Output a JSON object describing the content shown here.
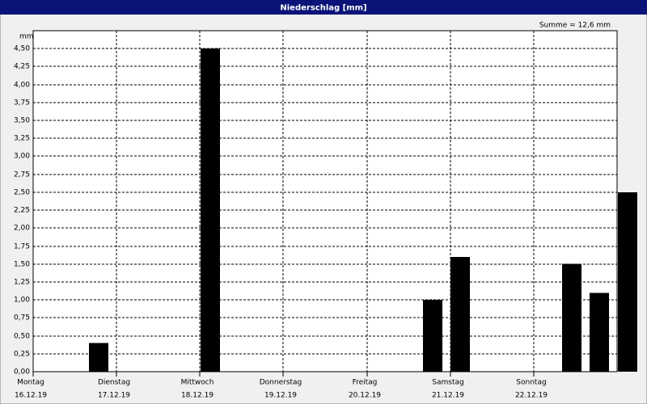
{
  "chart_data": {
    "type": "bar",
    "title": "Niederschlag [mm]",
    "summary": "Summe = 12,6 mm",
    "y_unit": "mm",
    "days": [
      {
        "name": "Montag",
        "date": "16.12.19"
      },
      {
        "name": "Dienstag",
        "date": "17.12.19"
      },
      {
        "name": "Mittwoch",
        "date": "18.12.19"
      },
      {
        "name": "Donnerstag",
        "date": "19.12.19"
      },
      {
        "name": "Freitag",
        "date": "20.12.19"
      },
      {
        "name": "Samstag",
        "date": "21.12.19"
      },
      {
        "name": "Sonntag",
        "date": "22.12.19"
      }
    ],
    "values": [
      0,
      0.4,
      0,
      0,
      0,
      4.5,
      0,
      0,
      0,
      0,
      0,
      0,
      0,
      1.0,
      1.6,
      0,
      0,
      0,
      1.5,
      1.1,
      2.5
    ],
    "color": "#000000",
    "ylim": [
      0,
      4.75
    ],
    "yticks": [
      {
        "value": 0,
        "label": "0,00"
      },
      {
        "value": 0.25,
        "label": "0,25"
      },
      {
        "value": 0.5,
        "label": "0,50"
      },
      {
        "value": 0.75,
        "label": "0,75"
      },
      {
        "value": 1,
        "label": "1,00"
      },
      {
        "value": 1.25,
        "label": "1,25"
      },
      {
        "value": 1.5,
        "label": "1,50"
      },
      {
        "value": 1.75,
        "label": "1,75"
      },
      {
        "value": 2,
        "label": "2,00"
      },
      {
        "value": 2.25,
        "label": "2,25"
      },
      {
        "value": 2.5,
        "label": "2,50"
      },
      {
        "value": 2.75,
        "label": "2,75"
      },
      {
        "value": 3,
        "label": "3,00"
      },
      {
        "value": 3.25,
        "label": "3,25"
      },
      {
        "value": 3.5,
        "label": "3,50"
      },
      {
        "value": 3.75,
        "label": "3,75"
      },
      {
        "value": 4,
        "label": "4,00"
      },
      {
        "value": 4.25,
        "label": "4,25"
      },
      {
        "value": 4.5,
        "label": "4,50"
      }
    ],
    "grid": true
  }
}
